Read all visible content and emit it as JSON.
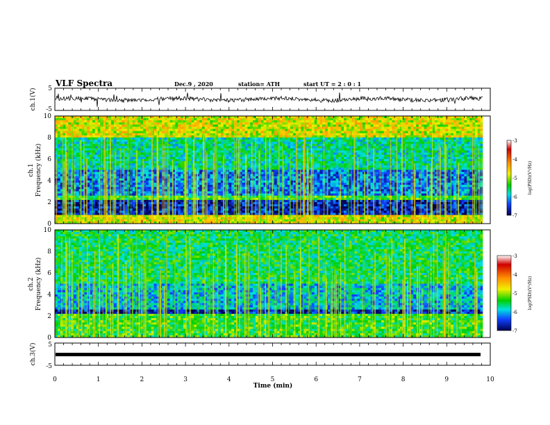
{
  "header": {
    "title": "VLF Spectra",
    "date": "Dec.9  , 2020",
    "station": "station= ATH",
    "start": "start  UT =   2 : 0  : 1"
  },
  "chart_data": [
    {
      "type": "line",
      "panel": "ch1-waveform",
      "ylabel": "ch.1(V)",
      "ylim": [
        -5,
        5
      ],
      "yticks": [
        "5",
        "-5"
      ],
      "x_range": [
        0,
        9.83
      ],
      "level_estimate_V": 0,
      "trace_color": "#000000"
    },
    {
      "type": "heatmap",
      "panel": "ch1-spectrogram",
      "ylabel": "ch.1\nFrequency (kHz)",
      "ylim": [
        0,
        10
      ],
      "yticks": [
        "0",
        "2",
        "4",
        "6",
        "8",
        "10"
      ],
      "x_range": [
        0,
        9.83
      ],
      "colorbar": {
        "label": "log(PSD)(V²/Hz)",
        "range": [
          -7,
          -3
        ],
        "ticks": [
          "-3",
          "-4",
          "-5",
          "-6",
          "-7"
        ]
      },
      "dominant_levels_by_band": [
        {
          "band_kHz": [
            0,
            0.8
          ],
          "log_psd": -4.6
        },
        {
          "band_kHz": [
            0.8,
            2.2
          ],
          "log_psd": -6.6
        },
        {
          "band_kHz": [
            2.2,
            2.6
          ],
          "log_psd": -5.2
        },
        {
          "band_kHz": [
            2.6,
            5.0
          ],
          "log_psd": -6.2
        },
        {
          "band_kHz": [
            5.0,
            8.0
          ],
          "log_psd": -5.6
        },
        {
          "band_kHz": [
            8.0,
            10.0
          ],
          "log_psd": -4.6
        }
      ]
    },
    {
      "type": "heatmap",
      "panel": "ch2-spectrogram",
      "ylabel": "ch.2\nFrequency (kHz)",
      "ylim": [
        0,
        10
      ],
      "yticks": [
        "0",
        "2",
        "4",
        "6",
        "8",
        "10"
      ],
      "x_range": [
        0,
        9.83
      ],
      "colorbar": {
        "label": "log(PSD)(V²/Hz)",
        "range": [
          -7,
          -3
        ],
        "ticks": [
          "-3",
          "-4",
          "-5",
          "-6",
          "-7"
        ]
      },
      "dominant_levels_by_band": [
        {
          "band_kHz": [
            0,
            2.2
          ],
          "log_psd": -5.2
        },
        {
          "band_kHz": [
            2.2,
            2.7
          ],
          "log_psd": -6.6
        },
        {
          "band_kHz": [
            2.7,
            5.0
          ],
          "log_psd": -5.9
        },
        {
          "band_kHz": [
            5.0,
            10.0
          ],
          "log_psd": -5.4
        }
      ]
    },
    {
      "type": "line",
      "panel": "ch3-waveform",
      "ylabel": "ch.3(V)",
      "ylim": [
        -5,
        5
      ],
      "yticks": [
        "5",
        "-5"
      ],
      "x_range": [
        0,
        9.83
      ],
      "level_estimate_V": -1,
      "xlabel": "Time  (min)",
      "xlim": [
        0,
        10
      ],
      "xticks": [
        "0",
        "1",
        "2",
        "3",
        "4",
        "5",
        "6",
        "7",
        "8",
        "9",
        "10"
      ],
      "trace_color": "#000000"
    }
  ]
}
